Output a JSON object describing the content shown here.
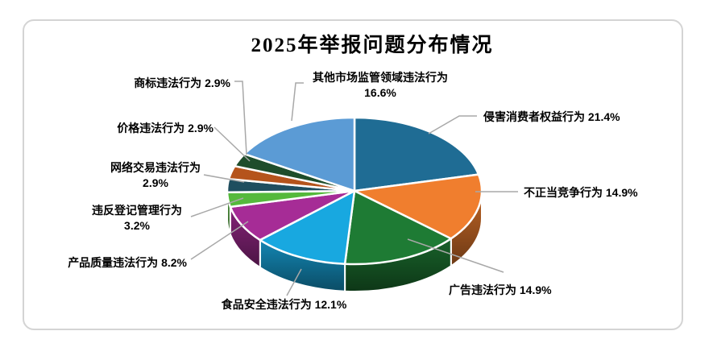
{
  "chart_data": {
    "type": "pie",
    "projection": "3d",
    "title": "2025年举报问题分布情况",
    "legend_position": "none",
    "label_style": "callout-leader-lines",
    "frame_border_color": "#D4D4D4",
    "leader_line_color": "#A8A8A8",
    "label_text_color": "#000000",
    "slices": [
      {
        "name": "侵害消费者权益行为",
        "value": 21.4,
        "pct_label": "21.4%",
        "color": "#1F6C94"
      },
      {
        "name": "不正当竞争行为",
        "value": 14.9,
        "pct_label": "14.9%",
        "color": "#F07E2E"
      },
      {
        "name": "广告违法行为",
        "value": 14.9,
        "pct_label": "14.9%",
        "color": "#1E7B34"
      },
      {
        "name": "食品安全违法行为",
        "value": 12.1,
        "pct_label": "12.1%",
        "color": "#18A8E0"
      },
      {
        "name": "产品质量违法行为",
        "value": 8.2,
        "pct_label": "8.2%",
        "color": "#A62C96"
      },
      {
        "name": "违反登记管理行为",
        "value": 3.2,
        "pct_label": "3.2%",
        "color": "#55B93C"
      },
      {
        "name": "网络交易违法行为",
        "value": 2.9,
        "pct_label": "2.9%",
        "color": "#1F4E5F"
      },
      {
        "name": "价格违法行为",
        "value": 2.9,
        "pct_label": "2.9%",
        "color": "#B5541C"
      },
      {
        "name": "商标违法行为",
        "value": 2.9,
        "pct_label": "2.9%",
        "color": "#1E4D2B"
      },
      {
        "name": "其他市场监管领域违法行为",
        "value": 16.6,
        "pct_label": "16.6%",
        "color": "#5B9BD5"
      }
    ]
  }
}
